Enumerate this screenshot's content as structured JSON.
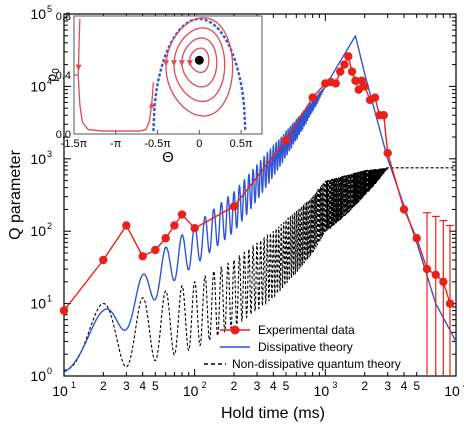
{
  "chart_data": [
    {
      "type": "line",
      "xlabel": "Hold time (ms)",
      "ylabel": "Q parameter",
      "x_scale": "log",
      "y_scale": "log",
      "xlim": [
        10,
        10000
      ],
      "ylim": [
        1,
        100000
      ],
      "x_ticks": [
        "10",
        "10",
        "10",
        "10"
      ],
      "x_tick_exponents": [
        "1",
        "2",
        "3",
        "4"
      ],
      "x_minor_labels": [
        "2",
        "3",
        "4",
        "5",
        "2",
        "3",
        "4",
        "5",
        "2",
        "3",
        "4",
        "5"
      ],
      "y_ticks": [
        "10",
        "10",
        "10",
        "10",
        "10",
        "10"
      ],
      "y_tick_exponents": [
        "0",
        "1",
        "2",
        "3",
        "4",
        "5"
      ],
      "legend_position": "bottom-right",
      "series": [
        {
          "name": "Experimental data",
          "style": "line-markers",
          "color": "#e8221b",
          "x": [
            10,
            20,
            30,
            40,
            50,
            60,
            70,
            80,
            100,
            200,
            500,
            800,
            1000,
            1100,
            1200,
            1300,
            1400,
            1500,
            1600,
            1700,
            1800,
            1900,
            2000,
            2200,
            2400,
            2600,
            2800,
            3000,
            4000,
            5000,
            6000,
            7000,
            8000,
            9000
          ],
          "y": [
            8,
            40,
            120,
            45,
            55,
            80,
            120,
            170,
            110,
            220,
            1800,
            7000,
            11000,
            11500,
            11000,
            16000,
            20000,
            26000,
            16000,
            12000,
            9000,
            12000,
            10000,
            6500,
            7000,
            4000,
            4000,
            1200,
            200,
            80,
            30,
            25,
            20,
            10
          ],
          "error_bars": [
            {
              "x": 6000,
              "low": 1,
              "high": 180
            },
            {
              "x": 7000,
              "low": 1,
              "high": 160
            },
            {
              "x": 8000,
              "low": 1,
              "high": 140
            },
            {
              "x": 9000,
              "low": 1,
              "high": 120
            }
          ]
        },
        {
          "name": "Dissipative theory",
          "style": "line",
          "color": "#2f55d4",
          "x": [
            10,
            20,
            40,
            60,
            100,
            200,
            400,
            1000,
            1700,
            2000,
            3000,
            5000,
            7000,
            10000
          ],
          "y": [
            4,
            8,
            25,
            60,
            120,
            350,
            1500,
            10000,
            50000,
            15000,
            1000,
            70,
            10,
            3
          ]
        },
        {
          "name": "Non-dissipative quantum theory",
          "style": "dashed",
          "color": "#000000",
          "x": [
            10,
            20,
            40,
            60,
            100,
            200,
            400,
            800,
            1000,
            2000,
            3000,
            5000,
            10000
          ],
          "y": [
            10,
            10,
            12,
            15,
            20,
            40,
            100,
            300,
            500,
            700,
            750,
            750,
            750
          ]
        }
      ]
    },
    {
      "type": "line",
      "role": "inset",
      "xlabel": "Θ",
      "ylabel": "ρ",
      "ylabel_subscript": "0",
      "xlim": [
        -1.5,
        0.75
      ],
      "ylim": [
        0,
        0.8
      ],
      "x_ticks": [
        "-1.5π",
        "-π",
        "-0.5π",
        "0",
        "0.5π"
      ],
      "x_tick_values": [
        -1.5,
        -1.0,
        -0.5,
        0,
        0.5
      ],
      "y_ticks": [
        "0.0",
        "0.4",
        "0.8"
      ],
      "y_tick_values": [
        0.0,
        0.4,
        0.8
      ],
      "trajectory_color": "#e04a55",
      "separatrix_color": "#2f55d4",
      "fixed_point_color": "#000000",
      "closed_orbits_amplitude": [
        0.12,
        0.22,
        0.32,
        0.42
      ],
      "fixed_point": [
        0,
        0.5
      ]
    }
  ]
}
